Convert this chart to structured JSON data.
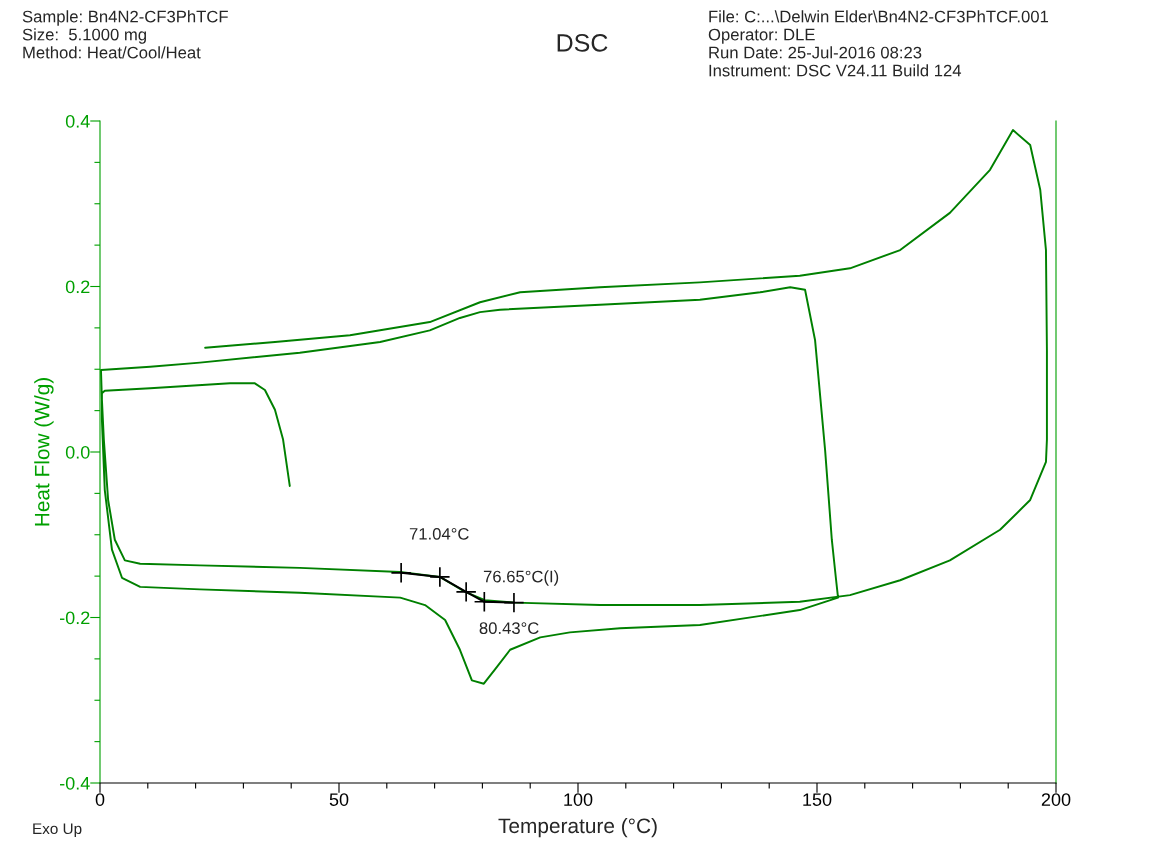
{
  "chart_data": {
    "type": "line",
    "title": "DSC",
    "xlabel": "Temperature (°C)",
    "ylabel": "Heat Flow (W/g)",
    "annotations": [
      "Sample: Bn4N2-CF3PhTCF",
      "Size:  5.1000 mg",
      "Method: Heat/Cool/Heat",
      "File: C:...\\Delwin Elder\\Bn4N2-CF3PhTCF.001",
      "Operator: DLE",
      "Run Date: 25-Jul-2016 08:23",
      "Instrument: DSC V24.11 Build 124",
      "Exo Up",
      {
        "text": "71.04°C",
        "x": 71.04,
        "y": -0.151
      },
      {
        "text": "76.65°C(I)",
        "x": 76.65,
        "y": -0.169
      },
      {
        "text": "80.43°C",
        "x": 80.43,
        "y": -0.181
      }
    ],
    "series": [
      {
        "color": "#008000",
        "x": [
          22.0,
          36.6,
          52.3,
          69.0,
          79.5,
          87.9,
          104.6,
          125.5,
          146.4,
          156.9,
          167.4,
          177.8,
          186.2,
          191.0,
          194.6,
          196.7,
          197.9,
          198.1,
          198.1,
          197.9,
          194.6,
          188.3,
          177.8,
          167.4,
          156.9,
          146.4,
          125.5,
          104.6,
          86.8,
          80.5,
          76.4,
          71.1,
          62.8,
          41.8,
          20.9,
          8.4,
          5.2,
          3.1,
          1.7,
          0.8,
          0.4,
          0.2,
          10.5,
          20.9,
          41.8,
          58.6,
          69.0,
          75.3,
          79.5,
          83.7,
          104.6,
          125.5,
          138.1,
          144.4,
          147.5,
          149.6,
          151.7,
          153.1,
          154.0,
          154.4,
          146.4,
          125.5,
          108.8,
          98.3,
          92.1,
          85.8,
          82.6,
          80.3,
          77.8,
          75.3,
          72.2,
          68.0,
          62.8,
          41.8,
          20.9,
          8.4,
          4.6,
          2.5,
          1.0,
          0.4,
          0.4,
          1.0,
          10.5,
          27.2,
          32.4,
          34.5,
          36.6,
          38.3,
          39.7
        ],
        "values": [
          0.126,
          0.133,
          0.141,
          0.157,
          0.181,
          0.193,
          0.199,
          0.205,
          0.213,
          0.222,
          0.244,
          0.289,
          0.341,
          0.389,
          0.371,
          0.317,
          0.244,
          0.123,
          0.015,
          -0.012,
          -0.058,
          -0.094,
          -0.131,
          -0.155,
          -0.173,
          -0.181,
          -0.185,
          -0.185,
          -0.182,
          -0.179,
          -0.169,
          -0.151,
          -0.145,
          -0.14,
          -0.137,
          -0.135,
          -0.131,
          -0.106,
          -0.058,
          0.015,
          0.063,
          0.099,
          0.103,
          0.108,
          0.12,
          0.133,
          0.147,
          0.162,
          0.169,
          0.172,
          0.178,
          0.184,
          0.193,
          0.199,
          0.196,
          0.135,
          0.002,
          -0.106,
          -0.155,
          -0.176,
          -0.191,
          -0.209,
          -0.213,
          -0.218,
          -0.224,
          -0.239,
          -0.263,
          -0.28,
          -0.276,
          -0.239,
          -0.203,
          -0.185,
          -0.176,
          -0.17,
          -0.166,
          -0.163,
          -0.152,
          -0.118,
          -0.046,
          0.039,
          0.071,
          0.074,
          0.077,
          0.083,
          0.083,
          0.075,
          0.051,
          0.015,
          -0.041
        ]
      },
      {
        "color": "#000000",
        "marker": "cross",
        "x": [
          63.0,
          71.1,
          76.6,
          80.4,
          86.6
        ],
        "values": [
          -0.146,
          -0.151,
          -0.169,
          -0.181,
          -0.182
        ]
      }
    ],
    "xlim": [
      0,
      200
    ],
    "ylim": [
      -0.4,
      0.4
    ],
    "xticks": [
      0,
      {
        "value": 10,
        "label": null
      },
      {
        "value": 20,
        "label": null
      },
      {
        "value": 30,
        "label": null
      },
      {
        "value": 40,
        "label": null
      },
      50,
      {
        "value": 60,
        "label": null
      },
      {
        "value": 70,
        "label": null
      },
      {
        "value": 80,
        "label": null
      },
      {
        "value": 90,
        "label": null
      },
      100,
      {
        "value": 110,
        "label": null
      },
      {
        "value": 120,
        "label": null
      },
      {
        "value": 130,
        "label": null
      },
      {
        "value": 140,
        "label": null
      },
      150,
      {
        "value": 160,
        "label": null
      },
      {
        "value": 170,
        "label": null
      },
      {
        "value": 180,
        "label": null
      },
      {
        "value": 190,
        "label": null
      },
      200
    ],
    "yticks": [
      {
        "value": -0.4,
        "label": "-0.4"
      },
      {
        "value": -0.35,
        "label": null
      },
      {
        "value": -0.3,
        "label": null
      },
      {
        "value": -0.25,
        "label": null
      },
      {
        "value": -0.2,
        "label": "-0.2"
      },
      {
        "value": -0.15,
        "label": null
      },
      {
        "value": -0.1,
        "label": null
      },
      {
        "value": -0.05,
        "label": null
      },
      {
        "value": 0.0,
        "label": "0.0"
      },
      {
        "value": 0.05,
        "label": null
      },
      {
        "value": 0.1,
        "label": null
      },
      {
        "value": 0.15,
        "label": null
      },
      {
        "value": 0.2,
        "label": "0.2"
      },
      {
        "value": 0.25,
        "label": null
      },
      {
        "value": 0.3,
        "label": null
      },
      {
        "value": 0.35,
        "label": null
      },
      {
        "value": 0.4,
        "label": "0.4"
      }
    ],
    "grid": false,
    "legend": false
  }
}
